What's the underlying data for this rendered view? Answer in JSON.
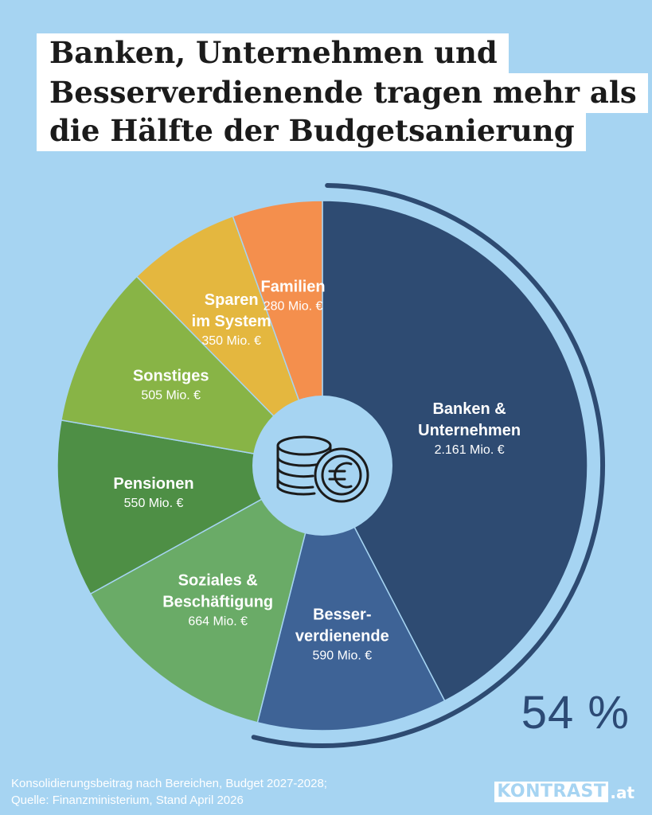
{
  "title": {
    "lines": [
      "Banken, Unternehmen und",
      "Besserverdienende tragen mehr als",
      "die Hälfte der Budgetsanierung"
    ]
  },
  "chart_data": {
    "type": "pie",
    "unit": "Mio. €",
    "slices": [
      {
        "label_lines": [
          "Banken &",
          "Unternehmen"
        ],
        "value": 2161,
        "value_label": "2.161 Mio. €",
        "color": "#2e4b72"
      },
      {
        "label_lines": [
          "Besser-",
          "verdienende"
        ],
        "value": 590,
        "value_label": "590 Mio. €",
        "color": "#3e6396"
      },
      {
        "label_lines": [
          "Soziales &",
          "Beschäftigung"
        ],
        "value": 664,
        "value_label": "664 Mio. €",
        "color": "#6aab67"
      },
      {
        "label_lines": [
          "Pensionen"
        ],
        "value": 550,
        "value_label": "550 Mio. €",
        "color": "#4e8f45"
      },
      {
        "label_lines": [
          "Sonstiges"
        ],
        "value": 505,
        "value_label": "505 Mio. €",
        "color": "#88b446"
      },
      {
        "label_lines": [
          "Sparen",
          "im System"
        ],
        "value": 350,
        "value_label": "350 Mio. €",
        "color": "#e4b73f"
      },
      {
        "label_lines": [
          "Familien"
        ],
        "value": 280,
        "value_label": "280 Mio. €",
        "color": "#f48f4d"
      }
    ],
    "highlight_share": "54 %",
    "center_icon": "coins-euro-icon",
    "background_color": "#a6d4f2"
  },
  "footer": {
    "line1": "Konsolidierungsbeitrag nach Bereichen, Budget 2027-2028;",
    "line2": "Quelle: Finanzministerium, Stand April 2026"
  },
  "logo": {
    "main": "KONTRAST",
    "tld": ".at"
  }
}
